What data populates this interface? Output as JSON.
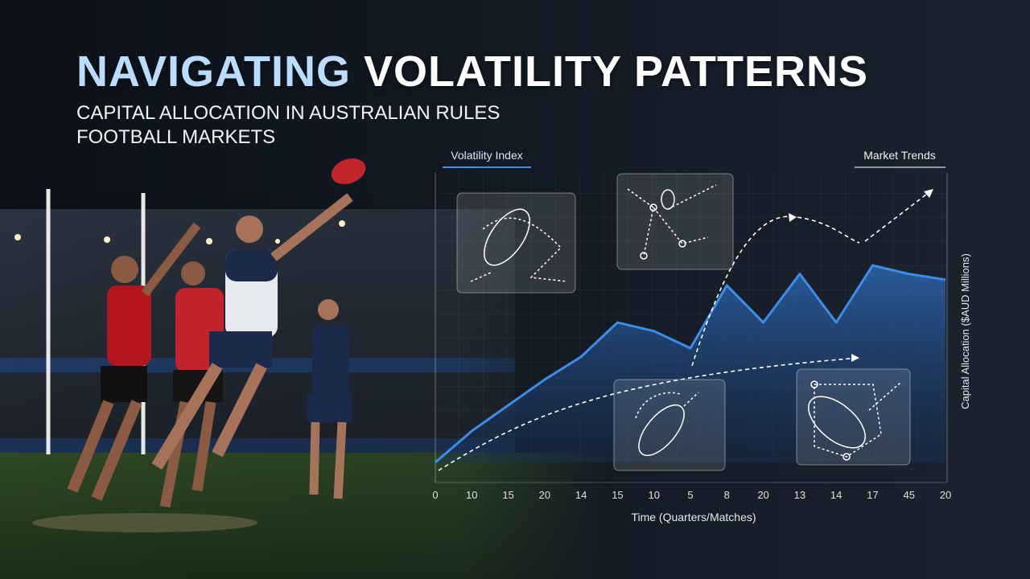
{
  "title": {
    "highlight": "NAVIGATING",
    "rest": "VOLATILITY PATTERNS"
  },
  "subtitle": "CAPITAL ALLOCATION IN AUSTRALIAN RULES FOOTBALL MARKETS",
  "chart_data": {
    "type": "area",
    "left_label": "Volatility Index",
    "right_label": "Market Trends",
    "x_label": "Time (Quarters/Matches)",
    "y_label": "Capital Allocation ($AUD Millions)",
    "categories": [
      "0",
      "10",
      "15",
      "20",
      "14",
      "15",
      "10",
      "5",
      "8",
      "20",
      "13",
      "14",
      "17",
      "45",
      "20"
    ],
    "values": [
      0,
      11,
      20,
      29,
      37,
      49,
      46,
      40,
      62,
      49,
      66,
      49,
      69,
      66,
      64
    ],
    "color": "#3b8ee8",
    "ylim": [
      0,
      100
    ]
  }
}
